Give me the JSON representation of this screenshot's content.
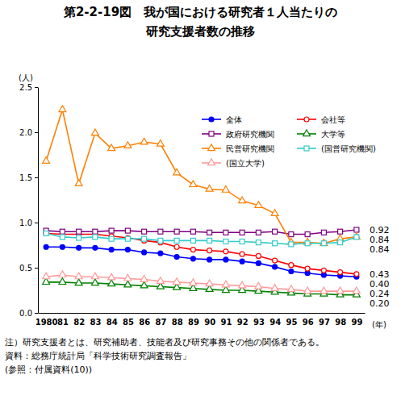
{
  "chart_data": {
    "type": "line",
    "title": "第2-2-19図　我が国における研究者１人当たりの",
    "subtitle": "研究支援者数の推移",
    "y_label": "(人)",
    "x_label": "(年)",
    "categories": [
      "1980",
      "81",
      "82",
      "83",
      "84",
      "85",
      "86",
      "87",
      "88",
      "89",
      "90",
      "91",
      "92",
      "93",
      "94",
      "95",
      "96",
      "97",
      "98",
      "99"
    ],
    "ylim": [
      0,
      2.5
    ],
    "yticks": [
      {
        "value": 0,
        "label": "0.0"
      },
      0.5,
      {
        "value": 1,
        "label": "1.0"
      },
      1.5,
      {
        "value": 2,
        "label": "2.0"
      },
      2.5
    ],
    "grid": false,
    "legend": "top",
    "series": [
      {
        "name": "全体",
        "color": "#0000ff",
        "marker": "circle",
        "values": [
          0.73,
          0.73,
          0.72,
          0.72,
          0.7,
          0.7,
          0.67,
          0.66,
          0.62,
          0.6,
          0.59,
          0.59,
          0.57,
          0.55,
          0.51,
          0.46,
          0.44,
          0.42,
          0.41,
          0.4
        ]
      },
      {
        "name": "会社等",
        "color": "#ff0000",
        "marker": "circle-open",
        "values": [
          0.88,
          0.87,
          0.87,
          0.87,
          0.85,
          0.83,
          0.8,
          0.78,
          0.73,
          0.7,
          0.69,
          0.68,
          0.65,
          0.63,
          0.58,
          0.53,
          0.49,
          0.47,
          0.45,
          0.43
        ]
      },
      {
        "name": "政府研究機関",
        "color": "#800080",
        "marker": "square-open",
        "values": [
          0.91,
          0.9,
          0.9,
          0.9,
          0.91,
          0.91,
          0.9,
          0.9,
          0.9,
          0.9,
          0.89,
          0.89,
          0.89,
          0.89,
          0.9,
          0.87,
          0.87,
          0.89,
          0.9,
          0.92
        ]
      },
      {
        "name": "大学等",
        "color": "#008000",
        "marker": "triangle-open",
        "values": [
          0.34,
          0.34,
          0.33,
          0.33,
          0.32,
          0.31,
          0.3,
          0.29,
          0.28,
          0.27,
          0.26,
          0.25,
          0.25,
          0.24,
          0.23,
          0.22,
          0.21,
          0.21,
          0.2,
          0.2
        ]
      },
      {
        "name": "民営研究機関",
        "color": "#ff8000",
        "marker": "triangle-open",
        "values": [
          1.68,
          2.25,
          1.43,
          1.99,
          1.82,
          1.85,
          1.89,
          1.87,
          1.55,
          1.42,
          1.37,
          1.36,
          1.24,
          1.19,
          1.1,
          0.78,
          0.78,
          0.77,
          0.82,
          0.84
        ]
      },
      {
        "name": "(国営研究機関)",
        "color": "#33cccc",
        "marker": "square-open",
        "values": [
          0.88,
          0.84,
          0.83,
          0.84,
          0.82,
          0.82,
          0.82,
          0.8,
          0.8,
          0.8,
          0.8,
          0.79,
          0.79,
          0.78,
          0.77,
          0.76,
          0.77,
          0.77,
          0.78,
          0.84
        ]
      },
      {
        "name": "(国立大学)",
        "color": "#ff9999",
        "marker": "triangle-open",
        "values": [
          0.4,
          0.42,
          0.4,
          0.4,
          0.39,
          0.38,
          0.37,
          0.35,
          0.34,
          0.33,
          0.32,
          0.31,
          0.3,
          0.29,
          0.27,
          0.26,
          0.24,
          0.24,
          0.24,
          0.24
        ]
      }
    ],
    "annotations": [
      {
        "text": "0.92",
        "value": 0.92
      },
      {
        "text": "0.84",
        "value": 0.84
      },
      {
        "text": "0.84",
        "value": 0.84
      },
      {
        "text": "0.43",
        "value": 0.43
      },
      {
        "text": "0.40",
        "value": 0.4
      },
      {
        "text": "0.24",
        "value": 0.24
      },
      {
        "text": "0.20",
        "value": 0.2
      }
    ],
    "notes": [
      "注）研究支援者とは、研究補助者、技能者及び研究事務その他の関係者である。",
      "資料：総務庁統計局「科学技術研究調査報告」",
      "(参照：付属資料(10))"
    ]
  }
}
